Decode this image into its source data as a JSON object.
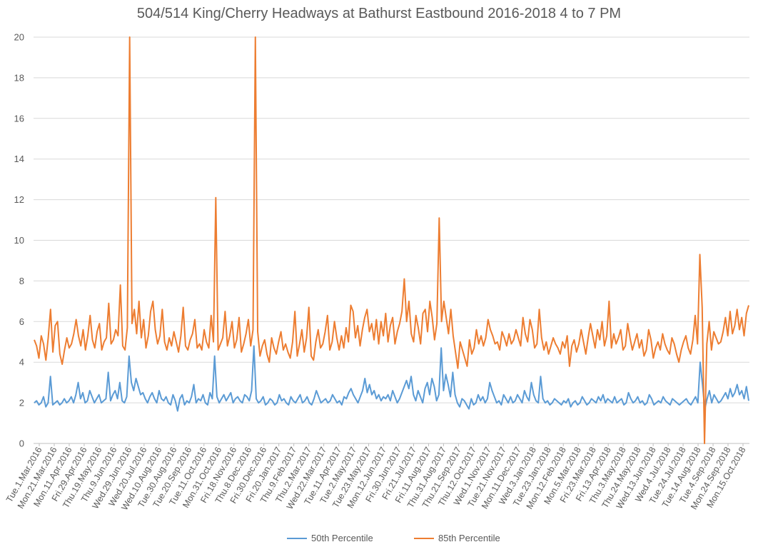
{
  "chart_data": {
    "type": "line",
    "title": "504/514 King/Cherry Headways at Bathurst Eastbound 2016-2018 4 to 7 PM",
    "xlabel": "",
    "ylabel": "",
    "ylim": [
      0,
      20
    ],
    "y_ticks": [
      "0",
      "2",
      "4",
      "6",
      "8",
      "10",
      "12",
      "14",
      "16",
      "18",
      "20"
    ],
    "grid": true,
    "legend_position": "bottom",
    "x_range": [
      "2016-03-01",
      "2018-10-31"
    ],
    "x_tick_labels": [
      "Tue.1.Mar.2016",
      "Mon.21.Mar.2016",
      "Mon.11.Apr.2016",
      "Fri.29.Apr.2016",
      "Thu.19.May.2016",
      "Thu.9.Jun.2016",
      "Wed.29.Jun.2016",
      "Wed.20.Jul.2016",
      "Wed.10.Aug.2016",
      "Tue.30.Aug.2016",
      "Tue.20.Sep.2016",
      "Tue.11.Oct.2016",
      "Mon.31.Oct.2016",
      "Fri.18.Nov.2016",
      "Thu.8.Dec.2016",
      "Fri.30.Dec.2016",
      "Fri.20.Jan.2017",
      "Thu.9.Feb.2017",
      "Thu.2.Mar.2017",
      "Wed.22.Mar.2017",
      "Tue.11.Apr.2017",
      "Tue.2.May.2017",
      "Tue.23.May.2017",
      "Mon.12.Jun.2017",
      "Fri.30.Jun.2017",
      "Fri.21.Jul.2017",
      "Fri.11.Aug.2017",
      "Thu.31.Aug.2017",
      "Thu.21.Sep.2017",
      "Thu.12.Oct.2017",
      "Wed.1.Nov.2017",
      "Tue.21.Nov.2017",
      "Mon.11.Dec.2017",
      "Wed.3.Jan.2018",
      "Tue.23.Jan.2018",
      "Mon.12.Feb.2018",
      "Mon.5.Mar.2018",
      "Fri.23.Mar.2018",
      "Fri.13.Apr.2018",
      "Thu.3.May.2018",
      "Thu.24.May.2018",
      "Wed.13.Jun.2018",
      "Wed.4.Jul.2018",
      "Tue.24.Jul.2018",
      "Tue.14.Aug.2018",
      "Tue.4.Sep.2018",
      "Mon.24.Sep.2018",
      "Mon.15.Oct.2018"
    ],
    "series": [
      {
        "name": "50th Percentile",
        "color": "#5b9bd5",
        "values": [
          2.0,
          2.1,
          1.9,
          2.0,
          2.3,
          1.8,
          2.0,
          3.3,
          1.9,
          2.0,
          2.1,
          1.9,
          2.0,
          2.2,
          2.0,
          2.1,
          2.3,
          2.0,
          2.4,
          3.0,
          2.2,
          2.5,
          2.0,
          2.1,
          2.6,
          2.3,
          2.0,
          2.2,
          2.4,
          2.0,
          2.1,
          2.2,
          3.5,
          2.1,
          2.4,
          2.6,
          2.2,
          3.0,
          2.1,
          2.0,
          2.3,
          4.3,
          3.0,
          2.6,
          3.2,
          2.8,
          2.4,
          2.5,
          2.2,
          2.0,
          2.3,
          2.5,
          2.2,
          2.0,
          2.6,
          2.2,
          2.1,
          2.3,
          2.0,
          1.9,
          2.4,
          2.1,
          1.6,
          2.2,
          2.4,
          1.9,
          2.1,
          2.0,
          2.3,
          2.9,
          2.0,
          2.2,
          2.1,
          2.4,
          2.0,
          1.9,
          2.5,
          2.2,
          4.3,
          2.3,
          2.0,
          2.2,
          2.4,
          2.1,
          2.3,
          2.5,
          2.0,
          2.2,
          2.3,
          2.1,
          2.0,
          2.4,
          2.3,
          2.1,
          2.6,
          4.8,
          2.2,
          2.0,
          2.1,
          2.3,
          1.9,
          2.0,
          2.2,
          2.1,
          1.9,
          2.0,
          2.4,
          2.1,
          2.2,
          2.0,
          1.9,
          2.3,
          2.1,
          2.0,
          2.2,
          2.4,
          2.0,
          2.1,
          2.3,
          2.0,
          1.9,
          2.2,
          2.6,
          2.3,
          2.0,
          2.1,
          2.2,
          2.0,
          2.1,
          2.4,
          2.2,
          2.0,
          2.1,
          1.9,
          2.3,
          2.2,
          2.5,
          2.7,
          2.4,
          2.2,
          2.0,
          2.3,
          2.6,
          3.2,
          2.5,
          2.9,
          2.4,
          2.6,
          2.2,
          2.4,
          2.1,
          2.3,
          2.2,
          2.4,
          2.1,
          2.6,
          2.3,
          2.0,
          2.2,
          2.5,
          2.8,
          3.1,
          2.7,
          3.3,
          2.4,
          2.1,
          2.6,
          2.3,
          2.0,
          2.7,
          3.0,
          2.4,
          3.2,
          2.8,
          2.1,
          2.4,
          4.7,
          2.6,
          3.4,
          2.9,
          2.3,
          3.5,
          2.4,
          2.0,
          1.8,
          2.2,
          2.1,
          1.9,
          1.7,
          2.2,
          1.9,
          2.0,
          2.4,
          2.1,
          2.3,
          2.0,
          2.2,
          3.0,
          2.6,
          2.3,
          2.0,
          2.1,
          1.9,
          2.4,
          2.2,
          2.0,
          2.3,
          2.0,
          2.1,
          2.4,
          2.2,
          2.0,
          2.6,
          2.3,
          2.1,
          3.0,
          2.4,
          2.1,
          2.0,
          3.3,
          2.2,
          2.0,
          2.1,
          1.9,
          2.0,
          2.2,
          2.1,
          2.0,
          1.9,
          2.1,
          2.0,
          2.2,
          1.8,
          2.0,
          2.1,
          1.9,
          2.0,
          2.3,
          2.1,
          1.9,
          2.0,
          2.2,
          2.1,
          2.0,
          2.3,
          2.1,
          2.4,
          2.0,
          2.2,
          2.1,
          2.0,
          2.3,
          2.0,
          2.1,
          2.2,
          1.9,
          2.0,
          2.5,
          2.2,
          2.0,
          2.1,
          2.3,
          2.0,
          2.1,
          1.9,
          2.0,
          2.4,
          2.2,
          1.9,
          2.0,
          2.1,
          2.0,
          2.3,
          2.1,
          2.0,
          1.9,
          2.2,
          2.1,
          2.0,
          1.9,
          2.0,
          2.1,
          2.2,
          2.0,
          1.9,
          2.1,
          2.3,
          2.0,
          4.0,
          2.9,
          1.7,
          2.2,
          2.6,
          2.0,
          2.4,
          2.2,
          2.0,
          2.1,
          2.3,
          2.5,
          2.2,
          2.7,
          2.3,
          2.5,
          2.9,
          2.4,
          2.6,
          2.2,
          2.8,
          2.1
        ]
      },
      {
        "name": "85th Percentile",
        "color": "#ed7d31",
        "values": [
          5.1,
          4.8,
          4.2,
          5.3,
          4.9,
          4.1,
          5.2,
          6.6,
          4.5,
          5.8,
          6.0,
          4.4,
          3.9,
          4.6,
          5.2,
          4.7,
          4.9,
          5.4,
          6.1,
          5.3,
          4.8,
          5.6,
          4.6,
          5.3,
          6.3,
          5.1,
          4.7,
          5.5,
          5.9,
          4.6,
          5.0,
          5.2,
          6.9,
          4.9,
          5.1,
          5.6,
          5.3,
          7.8,
          4.8,
          4.6,
          5.7,
          20.0,
          5.9,
          6.6,
          5.4,
          7.0,
          5.2,
          6.1,
          4.7,
          5.3,
          6.5,
          7.0,
          5.6,
          4.9,
          5.3,
          6.6,
          5.0,
          4.6,
          5.2,
          4.8,
          5.5,
          5.0,
          4.5,
          5.3,
          6.7,
          4.8,
          4.6,
          5.1,
          5.4,
          6.1,
          4.7,
          4.9,
          4.6,
          5.6,
          5.0,
          4.7,
          6.3,
          5.0,
          12.1,
          4.6,
          4.9,
          5.2,
          6.5,
          4.8,
          5.3,
          6.0,
          4.7,
          5.1,
          6.2,
          4.5,
          4.9,
          5.4,
          6.1,
          4.8,
          5.6,
          20.0,
          5.5,
          4.3,
          4.8,
          5.1,
          4.4,
          4.0,
          5.2,
          4.7,
          4.4,
          5.0,
          5.5,
          4.6,
          4.9,
          4.5,
          4.2,
          5.0,
          6.5,
          4.3,
          4.9,
          5.6,
          4.5,
          5.2,
          6.7,
          4.3,
          4.1,
          5.0,
          5.6,
          4.7,
          4.9,
          5.5,
          6.3,
          4.6,
          5.0,
          6.0,
          5.2,
          4.6,
          5.3,
          4.7,
          5.7,
          5.0,
          6.8,
          6.5,
          5.2,
          5.8,
          4.8,
          5.6,
          6.2,
          6.6,
          5.5,
          5.9,
          5.1,
          6.1,
          4.9,
          6.0,
          5.3,
          6.4,
          5.0,
          5.8,
          6.2,
          4.9,
          5.5,
          5.9,
          6.5,
          8.1,
          6.0,
          7.0,
          5.4,
          5.0,
          6.3,
          5.7,
          4.9,
          6.4,
          6.6,
          5.5,
          7.0,
          6.2,
          5.1,
          5.9,
          11.1,
          6.0,
          7.0,
          6.2,
          5.4,
          6.6,
          5.3,
          4.5,
          3.7,
          5.0,
          4.6,
          4.2,
          3.8,
          5.1,
          4.4,
          4.7,
          5.6,
          4.9,
          5.3,
          4.8,
          5.2,
          6.1,
          5.6,
          5.3,
          4.9,
          5.0,
          4.6,
          5.5,
          5.2,
          4.8,
          5.4,
          4.9,
          5.1,
          5.6,
          5.2,
          4.8,
          6.2,
          5.4,
          5.0,
          6.1,
          5.6,
          4.7,
          4.9,
          6.6,
          5.2,
          4.6,
          5.0,
          4.4,
          4.8,
          5.2,
          4.9,
          4.7,
          4.4,
          5.0,
          4.7,
          5.3,
          3.8,
          4.8,
          5.1,
          4.5,
          4.9,
          5.6,
          5.0,
          4.4,
          5.2,
          5.9,
          5.3,
          4.7,
          5.6,
          5.1,
          6.0,
          4.8,
          5.3,
          7.0,
          4.7,
          5.4,
          4.9,
          5.2,
          5.6,
          4.6,
          4.8,
          5.9,
          5.2,
          4.6,
          5.0,
          5.4,
          4.7,
          5.1,
          4.3,
          4.6,
          5.6,
          5.1,
          4.2,
          4.7,
          5.0,
          4.6,
          5.4,
          4.9,
          4.6,
          4.4,
          5.2,
          4.9,
          4.4,
          4.0,
          4.6,
          5.0,
          5.3,
          4.7,
          4.4,
          5.1,
          6.3,
          4.9,
          9.3,
          6.7,
          0.0,
          4.9,
          6.0,
          4.6,
          5.5,
          5.2,
          4.9,
          5.0,
          5.5,
          6.2,
          5.3,
          6.5,
          5.4,
          5.8,
          6.6,
          5.6,
          6.2,
          5.3,
          6.4,
          6.8
        ]
      }
    ]
  }
}
